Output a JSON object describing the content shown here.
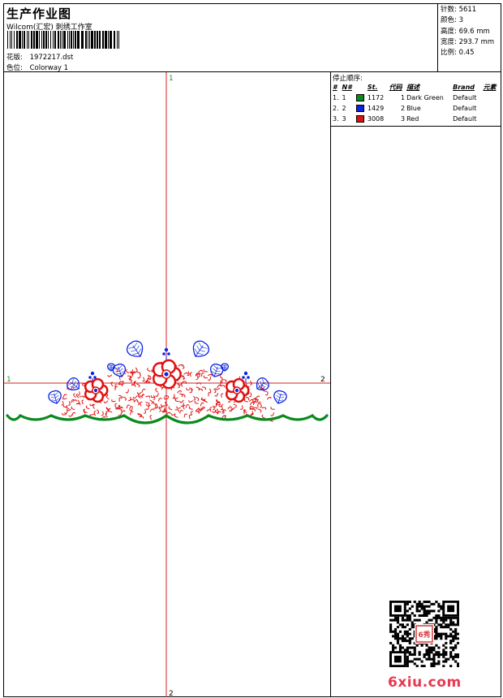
{
  "header": {
    "title": "生产作业图",
    "company": "Wilcom(汇宏) 刺绣工作室",
    "design_label": "花版:",
    "design_value": "1972217.dst",
    "colorway_label": "色位:",
    "colorway_value": "Colorway 1"
  },
  "stats": {
    "stitches_label": "针数:",
    "stitches_value": "5611",
    "colors_label": "颜色:",
    "colors_value": "3",
    "height_label": "高度:",
    "height_value": "69.6 mm",
    "width_label": "宽度:",
    "width_value": "293.7 mm",
    "scale_label": "比例:",
    "scale_value": "0.45"
  },
  "stop_sequence": {
    "title": "停止顺序:",
    "columns": [
      "#",
      "N#",
      "St.",
      "代码",
      "描述",
      "Brand",
      "元素"
    ],
    "rows": [
      {
        "idx": "1.",
        "n": "1",
        "color": "#0a8a1e",
        "stitches": "1172",
        "code": "1",
        "desc": "Dark Green",
        "brand": "Default"
      },
      {
        "idx": "2.",
        "n": "2",
        "color": "#0a24e0",
        "stitches": "1429",
        "code": "2",
        "desc": "Blue",
        "brand": "Default"
      },
      {
        "idx": "3.",
        "n": "3",
        "color": "#e01010",
        "stitches": "3008",
        "code": "3",
        "desc": "Red",
        "brand": "Default"
      }
    ]
  },
  "design_markers": {
    "top": "1",
    "bottom": "2",
    "left": "1",
    "right": "2"
  },
  "watermark": "6xiu.com",
  "seal_text": "6秀",
  "colors": {
    "crosshair": "#d42020",
    "marker": "#1a9a1a",
    "green": "#0a8a1e",
    "blue": "#0a24e0",
    "red": "#e01010"
  }
}
